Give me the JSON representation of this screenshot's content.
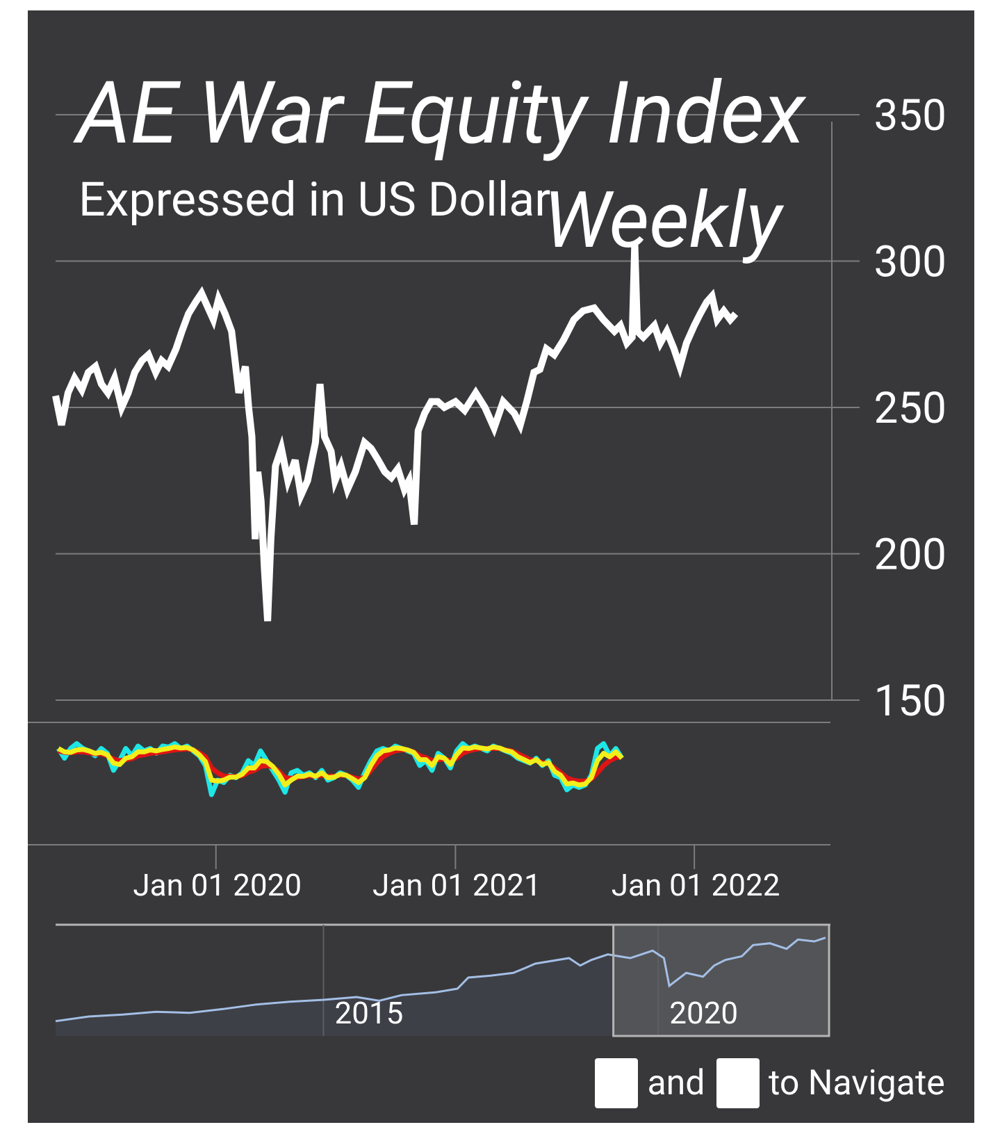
{
  "colors": {
    "panel_bg": "#38383a",
    "grid": "#7c7c7c",
    "price_line": "#ffffff",
    "osc_cyan": "#1ee6e6",
    "osc_red": "#e01414",
    "osc_yellow": "#f2ee1a",
    "navigator_line": "#a4bfe6",
    "navigator_mask": "#57585c",
    "navigator_outline": "#b4b4b4",
    "key_bg": "#ffffff",
    "key_fg": "#000000"
  },
  "chart_data": {
    "type": "line",
    "title": "AE War Equity Index",
    "subtitle": "Expressed in US Dollar",
    "period_label": "Weekly",
    "y_axis": {
      "ticks": [
        150,
        200,
        250,
        300,
        350
      ],
      "tick_labels": [
        "150",
        "200",
        "250",
        "300",
        "350"
      ],
      "range": [
        150,
        350
      ],
      "position": "right"
    },
    "x_axis": {
      "range": [
        "2019-05-01",
        "2022-07-28"
      ],
      "ticks": [
        "2020-01-01",
        "2021-01-01",
        "2022-01-01"
      ],
      "tick_labels": [
        "Jan 01 2020",
        "Jan 01 2021",
        "Jan 01 2022"
      ]
    },
    "series": [
      {
        "name": "",
        "role": "price",
        "points": [
          [
            "2019-05-01",
            254
          ],
          [
            "2019-05-10",
            244
          ],
          [
            "2019-05-20",
            255
          ],
          [
            "2019-05-30",
            260
          ],
          [
            "2019-06-10",
            256
          ],
          [
            "2019-06-20",
            262
          ],
          [
            "2019-07-01",
            264
          ],
          [
            "2019-07-10",
            258
          ],
          [
            "2019-07-20",
            255
          ],
          [
            "2019-07-30",
            260
          ],
          [
            "2019-08-10",
            250
          ],
          [
            "2019-08-20",
            255
          ],
          [
            "2019-08-30",
            262
          ],
          [
            "2019-09-10",
            266
          ],
          [
            "2019-09-20",
            268
          ],
          [
            "2019-10-01",
            262
          ],
          [
            "2019-10-10",
            266
          ],
          [
            "2019-10-20",
            264
          ],
          [
            "2019-11-01",
            270
          ],
          [
            "2019-11-10",
            276
          ],
          [
            "2019-11-20",
            282
          ],
          [
            "2019-12-01",
            286
          ],
          [
            "2019-12-10",
            289
          ],
          [
            "2019-12-20",
            284
          ],
          [
            "2019-12-28",
            280
          ],
          [
            "2020-01-05",
            287
          ],
          [
            "2020-01-15",
            282
          ],
          [
            "2020-01-25",
            276
          ],
          [
            "2020-02-05",
            255
          ],
          [
            "2020-02-15",
            264
          ],
          [
            "2020-02-20",
            250
          ],
          [
            "2020-02-25",
            240
          ],
          [
            "2020-03-01",
            205
          ],
          [
            "2020-03-05",
            228
          ],
          [
            "2020-03-10",
            218
          ],
          [
            "2020-03-15",
            195
          ],
          [
            "2020-03-20",
            177
          ],
          [
            "2020-03-25",
            205
          ],
          [
            "2020-04-01",
            230
          ],
          [
            "2020-04-10",
            236
          ],
          [
            "2020-04-20",
            225
          ],
          [
            "2020-05-01",
            232
          ],
          [
            "2020-05-10",
            220
          ],
          [
            "2020-05-20",
            225
          ],
          [
            "2020-06-01",
            238
          ],
          [
            "2020-06-08",
            258
          ],
          [
            "2020-06-15",
            240
          ],
          [
            "2020-06-25",
            235
          ],
          [
            "2020-07-01",
            225
          ],
          [
            "2020-07-10",
            230
          ],
          [
            "2020-07-20",
            222
          ],
          [
            "2020-08-01",
            228
          ],
          [
            "2020-08-15",
            238
          ],
          [
            "2020-08-25",
            236
          ],
          [
            "2020-09-05",
            232
          ],
          [
            "2020-09-15",
            228
          ],
          [
            "2020-09-25",
            226
          ],
          [
            "2020-10-05",
            229
          ],
          [
            "2020-10-15",
            222
          ],
          [
            "2020-10-22",
            225
          ],
          [
            "2020-10-30",
            210
          ],
          [
            "2020-11-05",
            242
          ],
          [
            "2020-11-15",
            248
          ],
          [
            "2020-11-25",
            252
          ],
          [
            "2020-12-05",
            252
          ],
          [
            "2020-12-15",
            250
          ],
          [
            "2021-01-01",
            252
          ],
          [
            "2021-01-15",
            249
          ],
          [
            "2021-02-01",
            255
          ],
          [
            "2021-02-15",
            250
          ],
          [
            "2021-03-01",
            243
          ],
          [
            "2021-03-15",
            252
          ],
          [
            "2021-04-01",
            248
          ],
          [
            "2021-04-10",
            244
          ],
          [
            "2021-04-20",
            252
          ],
          [
            "2021-05-01",
            262
          ],
          [
            "2021-05-10",
            263
          ],
          [
            "2021-05-20",
            270
          ],
          [
            "2021-06-01",
            268
          ],
          [
            "2021-06-15",
            273
          ],
          [
            "2021-07-01",
            280
          ],
          [
            "2021-07-15",
            283
          ],
          [
            "2021-08-01",
            284
          ],
          [
            "2021-08-15",
            280
          ],
          [
            "2021-09-01",
            276
          ],
          [
            "2021-09-10",
            278
          ],
          [
            "2021-09-20",
            272
          ],
          [
            "2021-09-28",
            274
          ],
          [
            "2021-10-02",
            306
          ],
          [
            "2021-10-06",
            276
          ],
          [
            "2021-10-15",
            274
          ],
          [
            "2021-11-01",
            278
          ],
          [
            "2021-11-10",
            272
          ],
          [
            "2021-11-20",
            276
          ],
          [
            "2021-12-01",
            270
          ],
          [
            "2021-12-10",
            264
          ],
          [
            "2021-12-20",
            272
          ],
          [
            "2022-01-01",
            278
          ],
          [
            "2022-01-10",
            282
          ],
          [
            "2022-01-20",
            286
          ],
          [
            "2022-01-28",
            288
          ],
          [
            "2022-02-05",
            280
          ],
          [
            "2022-02-15",
            283
          ],
          [
            "2022-02-25",
            280
          ],
          [
            "2022-03-05",
            282
          ]
        ]
      },
      {
        "name": "",
        "role": "oscillator",
        "color": "#1ee6e6",
        "values": [
          0.55,
          0.35,
          0.55,
          0.65,
          0.55,
          0.5,
          0.4,
          0.55,
          0.45,
          0.1,
          0.3,
          0.55,
          0.4,
          0.6,
          0.5,
          0.55,
          0.45,
          0.6,
          0.58,
          0.65,
          0.55,
          0.6,
          0.5,
          0.4,
          0.2,
          -0.4,
          -0.1,
          -0.15,
          0.0,
          -0.05,
          0.05,
          0.3,
          0.2,
          0.5,
          0.3,
          0.1,
          -0.1,
          -0.35,
          0.05,
          0.1,
          0.0,
          0.05,
          -0.05,
          0.1,
          -0.1,
          -0.05,
          0.05,
          0.0,
          -0.1,
          -0.25,
          0.05,
          0.3,
          0.5,
          0.55,
          0.5,
          0.6,
          0.55,
          0.5,
          0.45,
          0.2,
          0.3,
          0.1,
          0.45,
          0.35,
          0.15,
          0.5,
          0.65,
          0.55,
          0.6,
          0.55,
          0.5,
          0.6,
          0.55,
          0.5,
          0.45,
          0.35,
          0.3,
          0.25,
          0.35,
          0.2,
          0.3,
          0.0,
          -0.05,
          -0.3,
          -0.2,
          -0.25,
          -0.2,
          0.0,
          0.55,
          0.65,
          0.4,
          0.55,
          0.35
        ]
      },
      {
        "name": "",
        "role": "oscillator",
        "color": "#e01414",
        "values": [
          0.5,
          0.47,
          0.46,
          0.48,
          0.48,
          0.46,
          0.44,
          0.44,
          0.4,
          0.33,
          0.3,
          0.32,
          0.34,
          0.4,
          0.42,
          0.45,
          0.46,
          0.48,
          0.5,
          0.52,
          0.53,
          0.54,
          0.52,
          0.46,
          0.38,
          0.15,
          0.05,
          -0.02,
          -0.02,
          -0.03,
          -0.01,
          0.06,
          0.1,
          0.18,
          0.2,
          0.17,
          0.08,
          -0.05,
          -0.06,
          -0.05,
          -0.03,
          -0.01,
          -0.02,
          0.0,
          -0.02,
          -0.02,
          0.0,
          0.0,
          -0.04,
          -0.08,
          -0.04,
          0.1,
          0.25,
          0.38,
          0.45,
          0.5,
          0.52,
          0.52,
          0.48,
          0.4,
          0.36,
          0.3,
          0.32,
          0.33,
          0.3,
          0.35,
          0.45,
          0.5,
          0.53,
          0.55,
          0.55,
          0.55,
          0.55,
          0.52,
          0.5,
          0.44,
          0.38,
          0.32,
          0.3,
          0.26,
          0.24,
          0.15,
          0.05,
          -0.05,
          -0.1,
          -0.12,
          -0.12,
          -0.08,
          0.05,
          0.2,
          0.3,
          0.36,
          0.38
        ]
      },
      {
        "name": "",
        "role": "oscillator",
        "color": "#f2ee1a",
        "values": [
          0.55,
          0.48,
          0.47,
          0.52,
          0.53,
          0.5,
          0.45,
          0.47,
          0.42,
          0.25,
          0.22,
          0.35,
          0.38,
          0.48,
          0.48,
          0.52,
          0.5,
          0.53,
          0.55,
          0.58,
          0.56,
          0.57,
          0.52,
          0.42,
          0.28,
          -0.1,
          -0.12,
          -0.1,
          -0.04,
          -0.04,
          0.02,
          0.15,
          0.15,
          0.3,
          0.28,
          0.18,
          0.02,
          -0.2,
          -0.1,
          -0.02,
          -0.02,
          0.02,
          -0.02,
          0.05,
          -0.05,
          -0.04,
          0.02,
          0.0,
          -0.07,
          -0.15,
          -0.05,
          0.2,
          0.4,
          0.5,
          0.52,
          0.56,
          0.55,
          0.52,
          0.47,
          0.32,
          0.32,
          0.2,
          0.38,
          0.35,
          0.22,
          0.42,
          0.56,
          0.55,
          0.58,
          0.56,
          0.54,
          0.58,
          0.56,
          0.51,
          0.48,
          0.38,
          0.32,
          0.26,
          0.32,
          0.22,
          0.26,
          0.08,
          0.0,
          -0.18,
          -0.16,
          -0.2,
          -0.18,
          -0.05,
          0.3,
          0.45,
          0.38,
          0.48,
          0.35
        ]
      }
    ],
    "navigator": {
      "x_range": [
        "2011-01-01",
        "2022-07-28"
      ],
      "tick_labels": [
        "2015",
        "2020"
      ],
      "ticks": [
        "2015-01-01",
        "2020-01-01"
      ],
      "selected_range": [
        "2019-05-01",
        "2022-07-28"
      ],
      "values": [
        [
          "2011-01",
          40
        ],
        [
          "2011-07",
          45
        ],
        [
          "2012-01",
          47
        ],
        [
          "2012-07",
          50
        ],
        [
          "2013-01",
          49
        ],
        [
          "2013-07",
          53
        ],
        [
          "2014-01",
          58
        ],
        [
          "2014-07",
          61
        ],
        [
          "2015-01",
          63
        ],
        [
          "2015-07",
          66
        ],
        [
          "2015-11",
          62
        ],
        [
          "2016-03",
          68
        ],
        [
          "2016-09",
          71
        ],
        [
          "2017-01",
          75
        ],
        [
          "2017-03",
          87
        ],
        [
          "2017-07",
          89
        ],
        [
          "2017-11",
          92
        ],
        [
          "2018-01",
          97
        ],
        [
          "2018-03",
          102
        ],
        [
          "2018-09",
          108
        ],
        [
          "2018-11",
          100
        ],
        [
          "2019-01",
          106
        ],
        [
          "2019-04",
          112
        ],
        [
          "2019-08",
          108
        ],
        [
          "2019-12",
          116
        ],
        [
          "2020-02",
          108
        ],
        [
          "2020-03",
          78
        ],
        [
          "2020-06",
          92
        ],
        [
          "2020-09",
          88
        ],
        [
          "2020-11",
          100
        ],
        [
          "2021-01",
          106
        ],
        [
          "2021-04",
          110
        ],
        [
          "2021-06",
          122
        ],
        [
          "2021-09",
          124
        ],
        [
          "2021-12",
          118
        ],
        [
          "2022-02",
          128
        ],
        [
          "2022-05",
          126
        ],
        [
          "2022-07",
          130
        ]
      ]
    }
  },
  "navigation_hint": {
    "left_key": "←",
    "conjunction": "and",
    "right_key": "→",
    "suffix": "to Navigate"
  }
}
